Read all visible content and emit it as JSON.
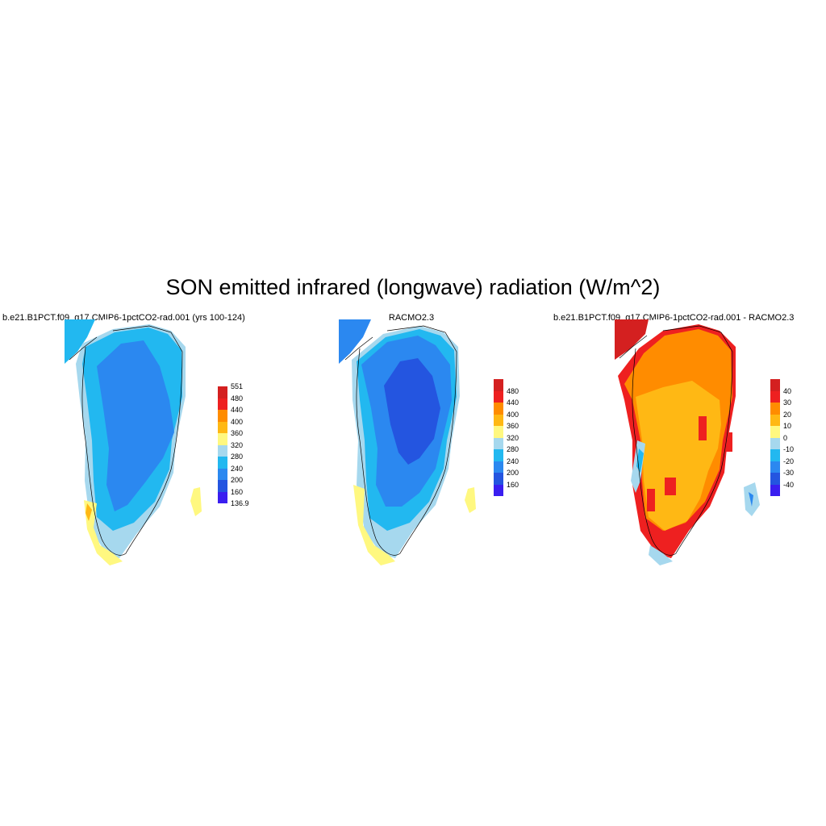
{
  "title": "SON emitted infrared (longwave) radiation (W/m^2)",
  "panels": [
    {
      "title": "b.e21.B1PCT.f09_g17.CMIP6-1pctCO2-rad.001 (yrs 100-124)"
    },
    {
      "title": "RACMO2.3"
    },
    {
      "title": "b.e21.B1PCT.f09_g17.CMIP6-1pctCO2-rad.001 - RACMO2.3"
    }
  ],
  "colorbars": [
    {
      "labels": [
        "551",
        "480",
        "440",
        "400",
        "360",
        "320",
        "280",
        "240",
        "200",
        "160",
        "136.9"
      ],
      "colors": [
        "#d42020",
        "#ee2020",
        "#ff8c00",
        "#ffb814",
        "#fff880",
        "#a6d8ee",
        "#22b8f0",
        "#2b88f0",
        "#2455e0",
        "#3a1ef0"
      ]
    },
    {
      "labels": [
        "480",
        "440",
        "400",
        "360",
        "320",
        "280",
        "240",
        "200",
        "160"
      ],
      "colors": [
        "#d42020",
        "#ee2020",
        "#ff8c00",
        "#ffb814",
        "#fff880",
        "#a6d8ee",
        "#22b8f0",
        "#2b88f0",
        "#2455e0",
        "#3a1ef0"
      ]
    },
    {
      "labels": [
        "40",
        "30",
        "20",
        "10",
        "0",
        "-10",
        "-20",
        "-30",
        "-40"
      ],
      "colors": [
        "#d42020",
        "#ee2020",
        "#ff8c00",
        "#ffb814",
        "#fff880",
        "#a6d8ee",
        "#22b8f0",
        "#2b88f0",
        "#2455e0",
        "#3a1ef0"
      ]
    }
  ]
}
